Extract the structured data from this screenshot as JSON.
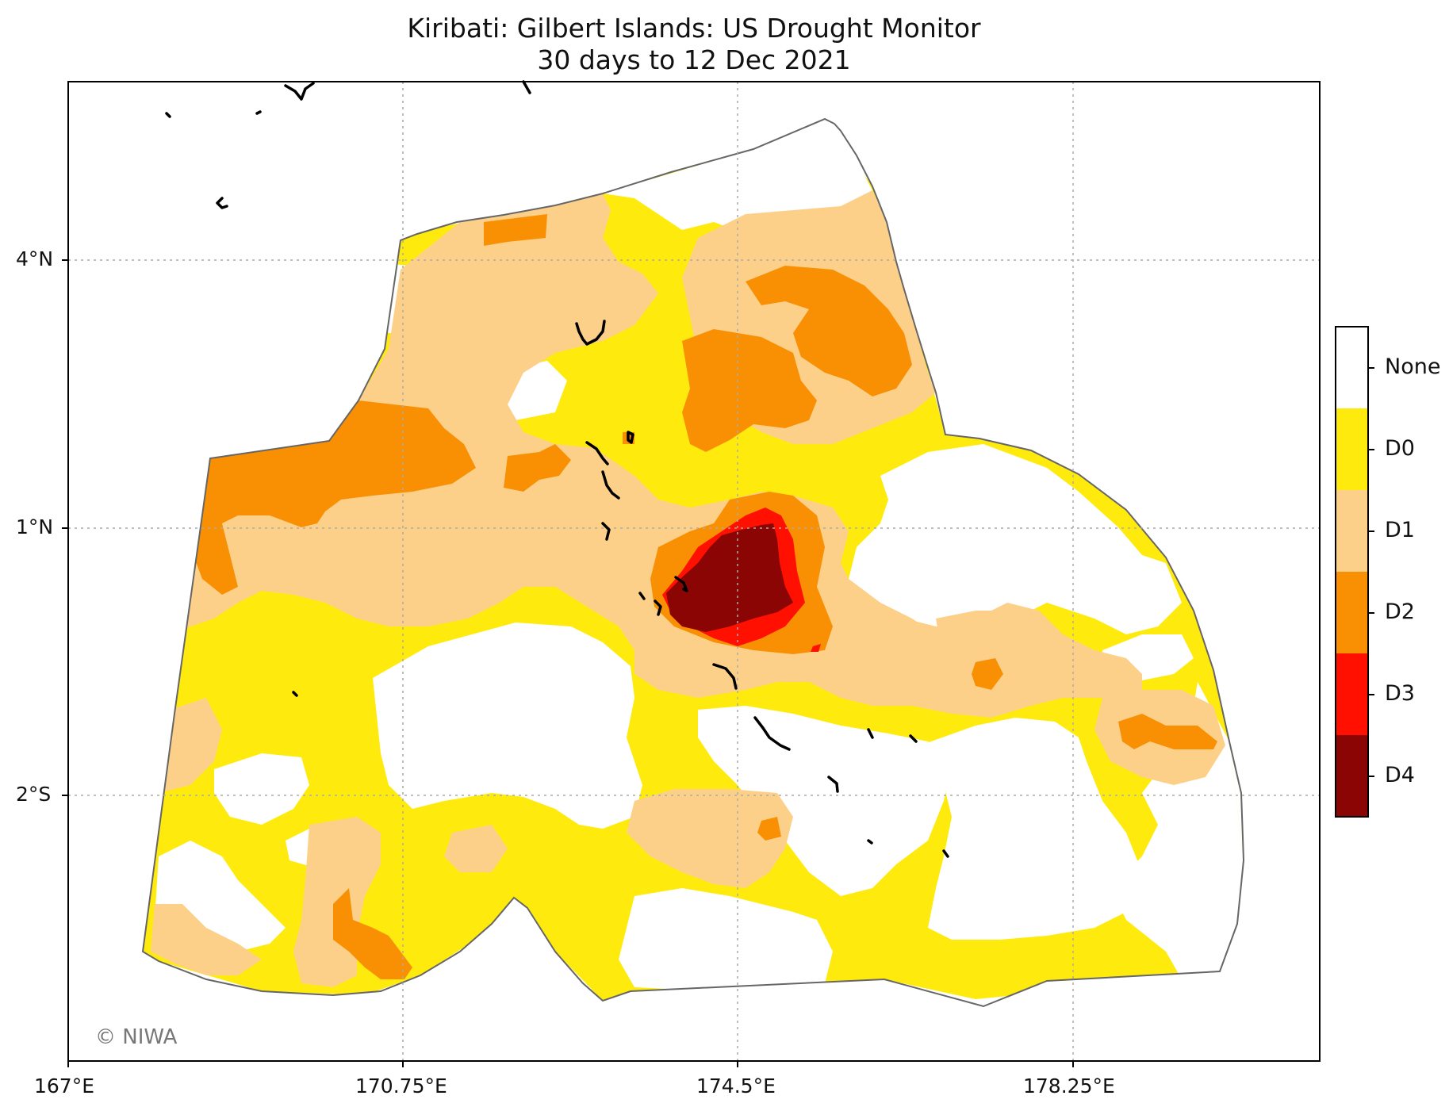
{
  "title": {
    "line1": "Kiribati: Gilbert Islands: US Drought Monitor",
    "line2": "30 days to 12 Dec 2021"
  },
  "axes": {
    "x_ticks": [
      "167°E",
      "170.75°E",
      "174.5°E",
      "178.25°E"
    ],
    "y_ticks": [
      "4°N",
      "1°N",
      "2°S"
    ]
  },
  "colorbar": {
    "categories": [
      {
        "label": "None",
        "color": "#ffffff"
      },
      {
        "label": "D0",
        "color": "#ffea0e"
      },
      {
        "label": "D1",
        "color": "#fdd08a"
      },
      {
        "label": "D2",
        "color": "#f99004"
      },
      {
        "label": "D3",
        "color": "#ff1000"
      },
      {
        "label": "D4",
        "color": "#8b0505"
      }
    ]
  },
  "copyright": "© NIWA",
  "colors": {
    "frame": "#000000",
    "boundary": "#666666",
    "grid": "#aaaaaa",
    "island": "#000000"
  }
}
